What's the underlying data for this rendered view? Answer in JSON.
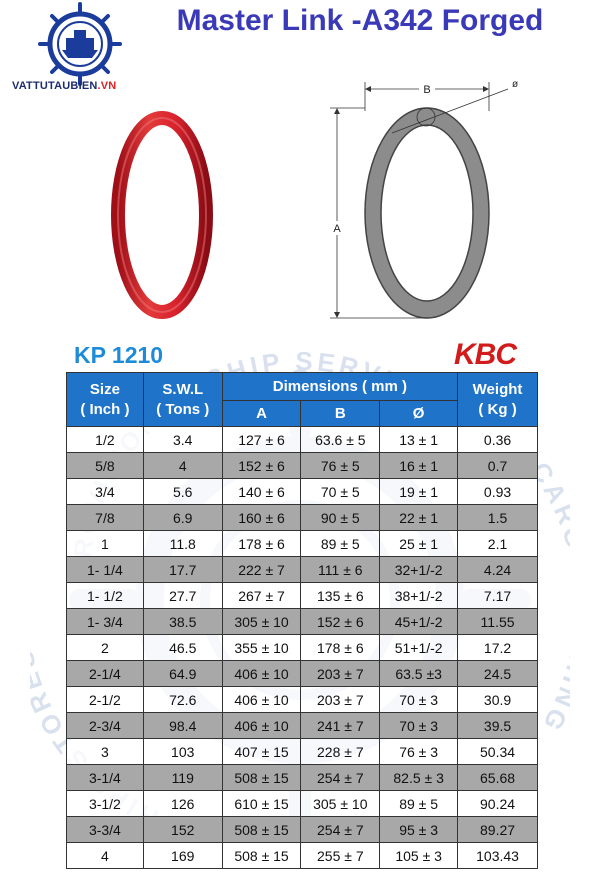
{
  "brand": {
    "name": "VATTUTAUBIEN",
    "suffix": ".VN"
  },
  "title": "Master Link -A342 Forged",
  "diagram": {
    "label_b": "B",
    "label_a": "A",
    "label_phi": "ø"
  },
  "model": "KP 1210",
  "maker": "KBC",
  "watermark": {
    "text_top": "PROVISIONS • SHIP SERVICE",
    "text_left": "SHIPS STORES",
    "text_right": "CARGO LASHING"
  },
  "table": {
    "headers": {
      "size": "Size",
      "size_unit": "( Inch )",
      "swl": "S.W.L",
      "swl_unit": "( Tons )",
      "dimensions": "Dimensions ( mm )",
      "a": "A",
      "b": "B",
      "phi": "Ø",
      "weight": "Weight",
      "weight_unit": "( Kg )"
    },
    "rows": [
      {
        "size": "1/2",
        "swl": "3.4",
        "a": "127 ± 6",
        "b": "63.6 ± 5",
        "phi": "13 ± 1",
        "weight": "0.36"
      },
      {
        "size": "5/8",
        "swl": "4",
        "a": "152 ± 6",
        "b": "76 ± 5",
        "phi": "16 ± 1",
        "weight": "0.7"
      },
      {
        "size": "3/4",
        "swl": "5.6",
        "a": "140 ± 6",
        "b": "70 ± 5",
        "phi": "19 ± 1",
        "weight": "0.93"
      },
      {
        "size": "7/8",
        "swl": "6.9",
        "a": "160 ± 6",
        "b": "90 ± 5",
        "phi": "22 ± 1",
        "weight": "1.5"
      },
      {
        "size": "1",
        "swl": "11.8",
        "a": "178 ± 6",
        "b": "89 ± 5",
        "phi": "25 ± 1",
        "weight": "2.1"
      },
      {
        "size": "1- 1/4",
        "swl": "17.7",
        "a": "222 ± 7",
        "b": "111 ± 6",
        "phi": "32+1/-2",
        "weight": "4.24"
      },
      {
        "size": "1- 1/2",
        "swl": "27.7",
        "a": "267 ± 7",
        "b": "135 ± 6",
        "phi": "38+1/-2",
        "weight": "7.17"
      },
      {
        "size": "1- 3/4",
        "swl": "38.5",
        "a": "305 ± 10",
        "b": "152 ± 6",
        "phi": "45+1/-2",
        "weight": "11.55"
      },
      {
        "size": "2",
        "swl": "46.5",
        "a": "355 ± 10",
        "b": "178 ± 6",
        "phi": "51+1/-2",
        "weight": "17.2"
      },
      {
        "size": "2-1/4",
        "swl": "64.9",
        "a": "406 ± 10",
        "b": "203 ± 7",
        "phi": "63.5 ±3",
        "weight": "24.5"
      },
      {
        "size": "2-1/2",
        "swl": "72.6",
        "a": "406 ± 10",
        "b": "203 ± 7",
        "phi": "70 ± 3",
        "weight": "30.9"
      },
      {
        "size": "2-3/4",
        "swl": "98.4",
        "a": "406 ± 10",
        "b": "241 ± 7",
        "phi": "70 ± 3",
        "weight": "39.5"
      },
      {
        "size": "3",
        "swl": "103",
        "a": "407 ± 15",
        "b": "228 ± 7",
        "phi": "76 ± 3",
        "weight": "50.34"
      },
      {
        "size": "3-1/4",
        "swl": "119",
        "a": "508 ± 15",
        "b": "254 ± 7",
        "phi": "82.5 ± 3",
        "weight": "65.68"
      },
      {
        "size": "3-1/2",
        "swl": "126",
        "a": "610 ± 15",
        "b": "305 ± 10",
        "phi": "89 ± 5",
        "weight": "90.24"
      },
      {
        "size": "3-3/4",
        "swl": "152",
        "a": "508 ± 15",
        "b": "254 ± 7",
        "phi": "95 ± 3",
        "weight": "89.27"
      },
      {
        "size": "4",
        "swl": "169",
        "a": "508 ± 15",
        "b": "255 ± 7",
        "phi": "105 ± 3",
        "weight": "103.43"
      }
    ]
  },
  "colors": {
    "title": "#3a3ab8",
    "header_bg": "#1f73c9",
    "model": "#1e8bd8",
    "maker": "#d21c1c",
    "alt_row": "#a8a8a8",
    "link_red": "#d9232e"
  }
}
